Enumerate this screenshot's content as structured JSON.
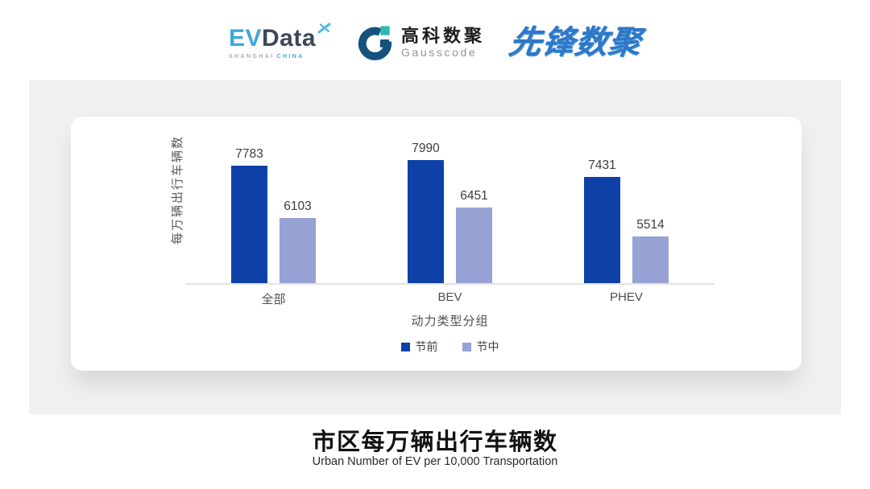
{
  "logos": {
    "evdata": {
      "ev": "EV",
      "data": "Data",
      "sub_gray": "SHANGHAI",
      "sub_blue": "CHINA",
      "light_blue": "#41a7db",
      "dark_slate": "#3c4759"
    },
    "gausscode": {
      "cn": "高科数聚",
      "en": "Gausscode",
      "ring_color": "#15527e",
      "accent_color": "#2cb8ab"
    },
    "pioneer": {
      "text": "先锋数聚",
      "color": "#2e78c8"
    }
  },
  "chart_data": {
    "type": "bar",
    "title": "市区每万辆出行车辆数",
    "subtitle": "Urban Number of EV per 10,000 Transportation",
    "categories": [
      "全部",
      "BEV",
      "PHEV"
    ],
    "series": [
      {
        "name": "节前",
        "values": [
          7783,
          7990,
          7431
        ],
        "color": "#0e41a8"
      },
      {
        "name": "节中",
        "values": [
          6103,
          6451,
          5514
        ],
        "color": "#98a3d5"
      }
    ],
    "xlabel": "动力类型分组",
    "ylabel": "每万辆出行车辆数",
    "ylim": [
      4000,
      9200
    ],
    "grid": false,
    "legend_position": "bottom",
    "value_labels": true
  }
}
